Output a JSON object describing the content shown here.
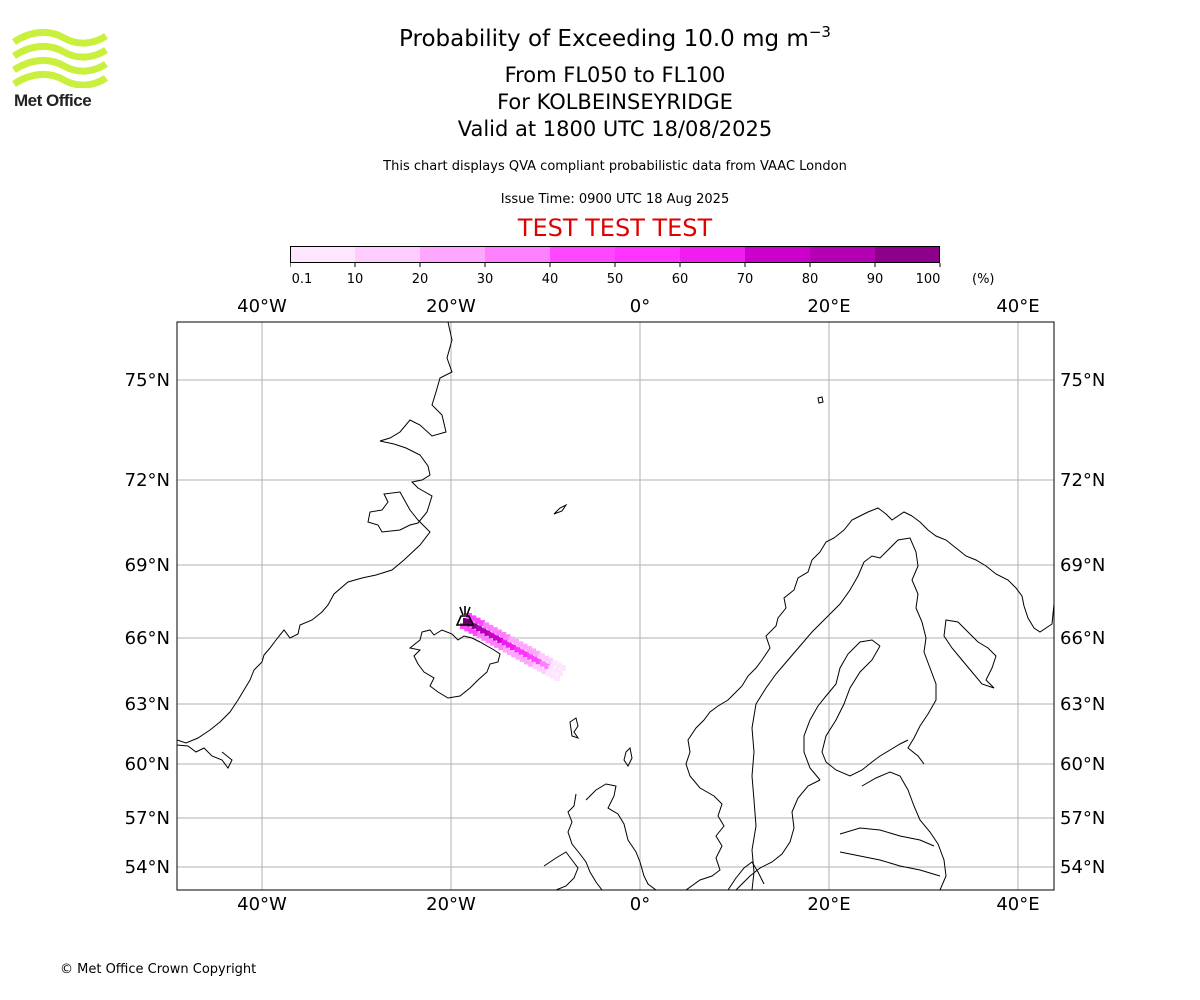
{
  "logo": {
    "text": "Met Office",
    "color": "#c8f03c"
  },
  "title": {
    "line1_prefix": "Probability of Exceeding 10.0 mg m",
    "line1_superscript": "−3",
    "line2": "From FL050 to FL100",
    "line3": "For KOLBEINSEYRIDGE",
    "line4": "Valid at 1800 UTC 18/08/2025"
  },
  "subtitle": "This chart displays QVA compliant probabilistic data from VAAC London",
  "issue_time": "Issue Time: 0900 UTC 18 Aug 2025",
  "test_banner": "TEST TEST TEST",
  "colorbar": {
    "unit": "(%)",
    "ticks": [
      "0.1",
      "10",
      "20",
      "30",
      "40",
      "50",
      "60",
      "70",
      "80",
      "90",
      "100"
    ],
    "colors": [
      "#ffe6ff",
      "#ffccff",
      "#ffa6ff",
      "#ff80ff",
      "#ff47ff",
      "#ff33ff",
      "#f01cf0",
      "#cc00cc",
      "#b300b3",
      "#8c008c",
      "#660066"
    ]
  },
  "map": {
    "lon_labels": [
      "40°W",
      "20°W",
      "0°",
      "20°E",
      "40°E"
    ],
    "lon_values": [
      -40,
      -20,
      0,
      20,
      40
    ],
    "lat_labels": [
      "75°N",
      "72°N",
      "69°N",
      "66°N",
      "63°N",
      "60°N",
      "57°N",
      "54°N"
    ],
    "lat_values": [
      75,
      72,
      69,
      66,
      63,
      60,
      57,
      54
    ],
    "volcano_icon": "volcano-icon",
    "plume_peak_probability": 100
  },
  "copyright": "© Met Office Crown Copyright"
}
